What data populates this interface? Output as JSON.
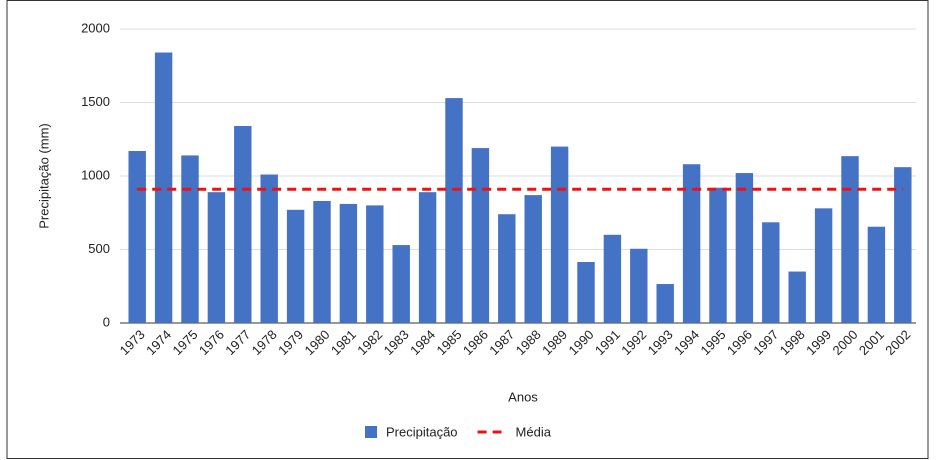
{
  "chart_data": {
    "type": "bar",
    "x_label": "Anos",
    "y_label": "Precipitação (mm)",
    "categories": [
      "1973",
      "1974",
      "1975",
      "1976",
      "1977",
      "1978",
      "1979",
      "1980",
      "1981",
      "1982",
      "1983",
      "1984",
      "1985",
      "1986",
      "1987",
      "1988",
      "1989",
      "1990",
      "1991",
      "1992",
      "1993",
      "1994",
      "1995",
      "1996",
      "1997",
      "1998",
      "1999",
      "2000",
      "2001",
      "2002"
    ],
    "series": [
      {
        "name": "Precipitação",
        "type": "bar",
        "color": "#4472c4",
        "values": [
          1170,
          1840,
          1140,
          890,
          1340,
          1010,
          770,
          830,
          810,
          800,
          530,
          890,
          1530,
          1190,
          740,
          870,
          1200,
          415,
          600,
          505,
          265,
          1080,
          920,
          1020,
          685,
          350,
          780,
          1135,
          655,
          1060
        ]
      },
      {
        "name": "Média",
        "type": "line",
        "dashed": true,
        "color": "#ee1111",
        "values": [
          910,
          910,
          910,
          910,
          910,
          910,
          910,
          910,
          910,
          910,
          910,
          910,
          910,
          910,
          910,
          910,
          910,
          910,
          910,
          910,
          910,
          910,
          910,
          910,
          910,
          910,
          910,
          910,
          910,
          910
        ]
      }
    ],
    "ylim": [
      0,
      2000
    ],
    "yticks": [
      0,
      500,
      1000,
      1500,
      2000
    ],
    "grid": true,
    "legend": "bottom"
  }
}
